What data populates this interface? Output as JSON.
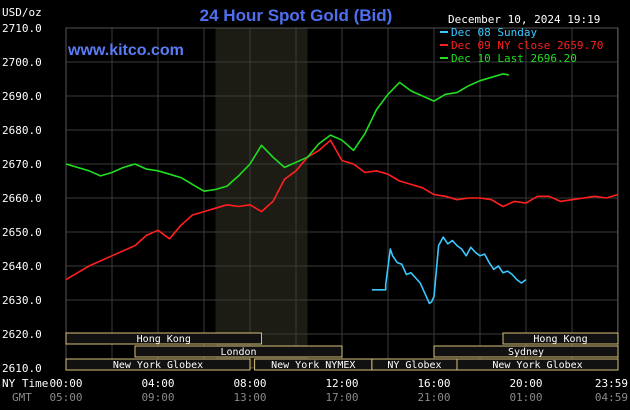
{
  "chart_data": {
    "type": "line",
    "title": "24 Hour Spot Gold (Bid)",
    "source": "www.kitco.com",
    "datetime": "December 10, 2024 19:19",
    "yunit": "USD/oz",
    "ylim": [
      2610,
      2710
    ],
    "yticks": [
      "2710.0",
      "2700.0",
      "2690.0",
      "2680.0",
      "2670.0",
      "2660.0",
      "2650.0",
      "2640.0",
      "2630.0",
      "2620.0",
      "2610.0"
    ],
    "x_ny_label": "NY Time",
    "x_gmt_label": "GMT",
    "x_ny_ticks": [
      "00:00",
      "04:00",
      "08:00",
      "12:00",
      "16:00",
      "20:00",
      "23:59"
    ],
    "x_gmt_ticks": [
      "05:00",
      "09:00",
      "13:00",
      "17:00",
      "21:00",
      "01:00",
      "04:59"
    ],
    "x_hours": [
      0,
      4,
      8,
      12,
      16,
      20,
      23.98
    ],
    "xlim": [
      0,
      24
    ],
    "grid": true,
    "legend_position": "top-right",
    "colors": {
      "background": "#000000",
      "plot": "#000000",
      "grid": "#3a3a3a",
      "highlight": "#1c1c14",
      "session": "#111111",
      "session_border": "#d9c07a"
    },
    "highlight_band_hours": [
      6.5,
      10.5
    ],
    "series": [
      {
        "name": "Dec 08 Sunday",
        "color": "#39c8ff",
        "x": [
          13.3,
          13.9,
          13.9,
          14.1,
          14.2,
          14.4,
          14.6,
          14.8,
          15.0,
          15.2,
          15.4,
          15.6,
          15.8,
          15.9,
          16.0,
          16.2,
          16.4,
          16.6,
          16.8,
          17.0,
          17.2,
          17.4,
          17.6,
          17.8,
          18.0,
          18.2,
          18.4,
          18.6,
          18.8,
          19.0,
          19.2,
          19.4,
          19.6,
          19.8,
          20.0
        ],
        "y": [
          2633.0,
          2633.0,
          2634.5,
          2645.0,
          2643.0,
          2641.0,
          2640.5,
          2637.5,
          2638.0,
          2636.5,
          2635.0,
          2632.0,
          2629.0,
          2629.5,
          2631.0,
          2646.0,
          2648.5,
          2646.5,
          2647.5,
          2646.0,
          2645.0,
          2643.0,
          2645.5,
          2644.0,
          2643.0,
          2643.5,
          2641.0,
          2639.0,
          2640.0,
          2638.0,
          2638.5,
          2637.5,
          2636.0,
          2635.0,
          2636.0
        ]
      },
      {
        "name": "Dec 09 NY close 2659.70",
        "color": "#ff1f1f",
        "x": [
          0,
          0.5,
          1.0,
          1.5,
          2.0,
          2.5,
          3.0,
          3.5,
          4.0,
          4.5,
          5.0,
          5.5,
          6.0,
          6.5,
          7.0,
          7.5,
          8.0,
          8.5,
          9.0,
          9.5,
          10.0,
          10.5,
          11.0,
          11.5,
          12.0,
          12.5,
          13.0,
          13.5,
          14.0,
          14.5,
          15.0,
          15.5,
          16.0,
          16.5,
          17.0,
          17.5,
          18.0,
          18.5,
          19.0,
          19.5,
          20.0,
          20.5,
          21.0,
          21.5,
          22.0,
          22.5,
          23.0,
          23.5,
          23.98
        ],
        "y": [
          2636.0,
          2638.0,
          2640.0,
          2641.5,
          2643.0,
          2644.5,
          2646.0,
          2649.0,
          2650.5,
          2648.0,
          2652.0,
          2655.0,
          2656.0,
          2657.0,
          2658.0,
          2657.5,
          2658.0,
          2656.0,
          2659.0,
          2665.5,
          2668.0,
          2672.0,
          2674.0,
          2677.0,
          2671.0,
          2670.0,
          2667.5,
          2668.0,
          2667.0,
          2665.0,
          2664.0,
          2663.0,
          2661.0,
          2660.5,
          2659.5,
          2660.0,
          2660.0,
          2659.5,
          2657.5,
          2659.0,
          2658.5,
          2660.5,
          2660.5,
          2659.0,
          2659.5,
          2660.0,
          2660.5,
          2660.0,
          2661.0
        ]
      },
      {
        "name": "Dec 10 Last 2696.20",
        "color": "#1fdf1f",
        "x": [
          0,
          0.5,
          1.0,
          1.5,
          2.0,
          2.5,
          3.0,
          3.5,
          4.0,
          4.5,
          5.0,
          5.5,
          6.0,
          6.5,
          7.0,
          7.5,
          8.0,
          8.5,
          9.0,
          9.5,
          10.0,
          10.5,
          11.0,
          11.5,
          12.0,
          12.5,
          13.0,
          13.5,
          14.0,
          14.5,
          15.0,
          15.5,
          16.0,
          16.5,
          17.0,
          17.5,
          18.0,
          18.5,
          19.0,
          19.25
        ],
        "y": [
          2670.0,
          2669.0,
          2668.0,
          2666.5,
          2667.5,
          2669.0,
          2670.0,
          2668.5,
          2668.0,
          2667.0,
          2666.0,
          2664.0,
          2662.0,
          2662.5,
          2663.5,
          2666.5,
          2670.0,
          2675.5,
          2672.0,
          2669.0,
          2670.5,
          2672.0,
          2676.0,
          2678.5,
          2677.0,
          2674.0,
          2679.0,
          2686.0,
          2690.5,
          2694.0,
          2691.5,
          2690.0,
          2688.5,
          2690.5,
          2691.0,
          2693.0,
          2694.5,
          2695.5,
          2696.5,
          2696.2
        ]
      }
    ],
    "sessions": [
      {
        "label": "Hong Kong",
        "row": 0,
        "start": 0,
        "end": 8.5
      },
      {
        "label": "Hong Kong",
        "row": 0,
        "start": 19,
        "end": 24
      },
      {
        "label": "London",
        "row": 1,
        "start": 3,
        "end": 12
      },
      {
        "label": "Sydney",
        "row": 1,
        "start": 16,
        "end": 24
      },
      {
        "label": "New York Globex",
        "row": 2,
        "start": 0,
        "end": 8
      },
      {
        "label": "New York NYMEX",
        "row": 2,
        "start": 8.2,
        "end": 13.3
      },
      {
        "label": "NY Globex",
        "row": 2,
        "start": 13.3,
        "end": 17
      },
      {
        "label": "New York Globex",
        "row": 2,
        "start": 17,
        "end": 24
      }
    ]
  }
}
